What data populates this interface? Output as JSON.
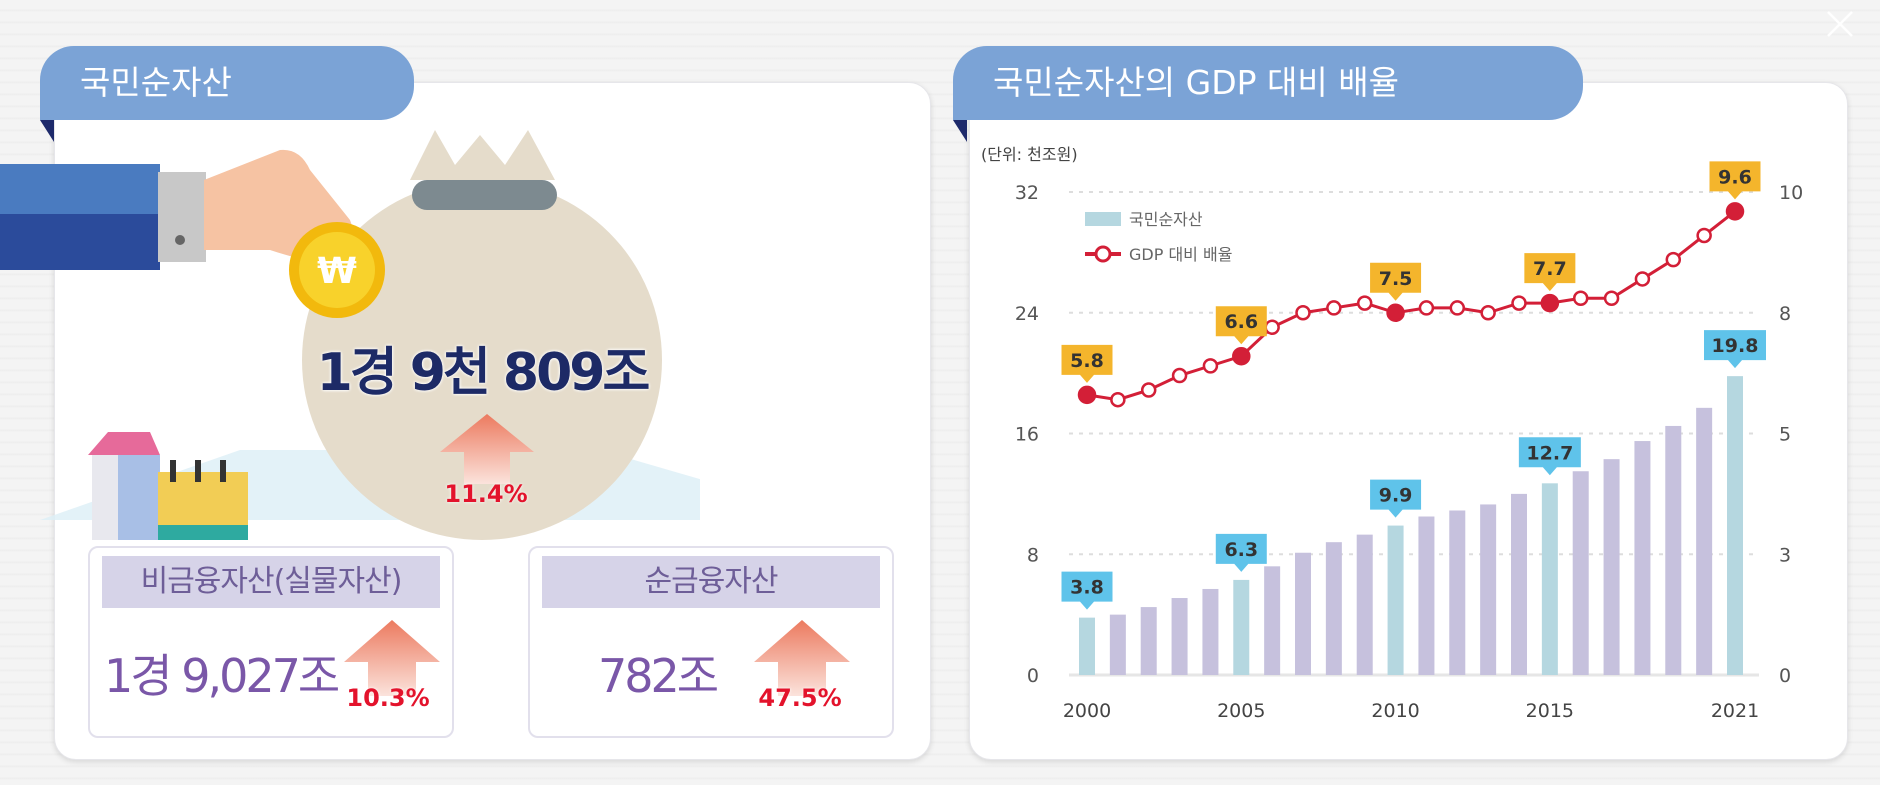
{
  "left_panel": {
    "title": "국민순자산",
    "total_value": "1경 9천 809조",
    "total_growth": "11.4%",
    "coin_symbol": "₩",
    "non_financial": {
      "label": "비금융자산(실물자산)",
      "value": "1경 9,027조",
      "growth": "10.3%"
    },
    "net_financial": {
      "label": "순금융자산",
      "value": "782조",
      "growth": "47.5%"
    }
  },
  "right_panel": {
    "title": "국민순자산의 GDP 대비 배율"
  },
  "colors": {
    "tab": "#7ba3d6",
    "bar_highlight": "#b5d7e0",
    "bar": "#c6c1dd",
    "line": "#d31f37",
    "label_yellow": "#f4b52c",
    "label_blue": "#5fc3ea"
  },
  "chart_data": {
    "type": "bar+line",
    "unit_label": "(단위: 천조원)",
    "x": [
      2000,
      2001,
      2002,
      2003,
      2004,
      2005,
      2006,
      2007,
      2008,
      2009,
      2010,
      2011,
      2012,
      2013,
      2014,
      2015,
      2016,
      2017,
      2018,
      2019,
      2020,
      2021
    ],
    "x_tick_labels": [
      "2000",
      "2005",
      "2010",
      "2015",
      "2021"
    ],
    "left_axis": {
      "ticks": [
        "0",
        "8",
        "16",
        "24",
        "32"
      ],
      "range": [
        0,
        32
      ]
    },
    "right_axis": {
      "ticks": [
        "0",
        "3",
        "5",
        "8",
        "10"
      ],
      "range": [
        0,
        10
      ]
    },
    "series": [
      {
        "name": "국민순자산",
        "type": "bar",
        "axis": "left",
        "values": [
          3.8,
          4.0,
          4.5,
          5.1,
          5.7,
          6.3,
          7.2,
          8.1,
          8.8,
          9.3,
          9.9,
          10.5,
          10.9,
          11.3,
          12.0,
          12.7,
          13.5,
          14.3,
          15.5,
          16.5,
          17.7,
          19.8
        ],
        "labeled": {
          "2000": "3.8",
          "2005": "6.3",
          "2010": "9.9",
          "2015": "12.7",
          "2021": "19.8"
        }
      },
      {
        "name": "GDP 대비 배율",
        "type": "line",
        "axis": "right",
        "values": [
          5.8,
          5.7,
          5.9,
          6.2,
          6.4,
          6.6,
          7.2,
          7.5,
          7.6,
          7.7,
          7.5,
          7.6,
          7.6,
          7.5,
          7.7,
          7.7,
          7.8,
          7.8,
          8.2,
          8.6,
          9.1,
          9.6
        ],
        "labeled": {
          "2000": "5.8",
          "2005": "6.6",
          "2010": "7.5",
          "2015": "7.7",
          "2021": "9.6"
        }
      }
    ],
    "legend_position": "top-left",
    "grid": "dashed horizontal"
  }
}
